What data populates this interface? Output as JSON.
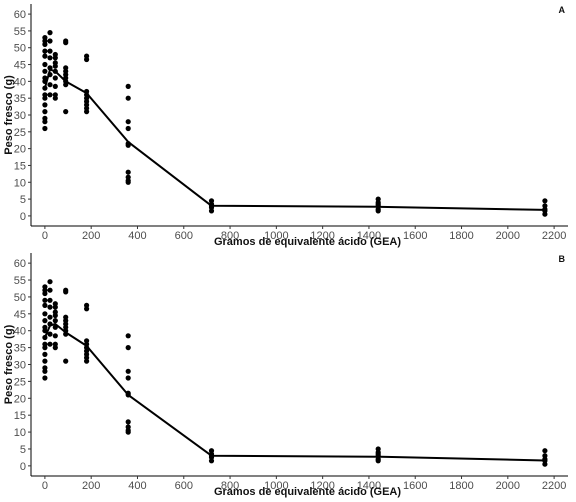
{
  "chart_data": [
    {
      "type": "scatter",
      "panel_label": "A",
      "xlabel": "Gramos de equivalente ácido (GEA)",
      "ylabel": "Peso fresco (g)",
      "xlim": [
        -60,
        2260
      ],
      "ylim": [
        -3,
        63
      ],
      "xticks": [
        0,
        200,
        400,
        600,
        800,
        1000,
        1200,
        1400,
        1600,
        1800,
        2000,
        2200
      ],
      "yticks": [
        0,
        5,
        10,
        15,
        20,
        25,
        30,
        35,
        40,
        45,
        50,
        55,
        60
      ],
      "grid": false,
      "points": [
        [
          0,
          53
        ],
        [
          0,
          52
        ],
        [
          0,
          51
        ],
        [
          0,
          49
        ],
        [
          0,
          47.5
        ],
        [
          0,
          45
        ],
        [
          0,
          43
        ],
        [
          0,
          41
        ],
        [
          0,
          40
        ],
        [
          0,
          38
        ],
        [
          0,
          36
        ],
        [
          0,
          35
        ],
        [
          0,
          33
        ],
        [
          0,
          31
        ],
        [
          0,
          29
        ],
        [
          0,
          28
        ],
        [
          0,
          26
        ],
        [
          22,
          54.5
        ],
        [
          22,
          52
        ],
        [
          22,
          49
        ],
        [
          22,
          47
        ],
        [
          22,
          44
        ],
        [
          22,
          42
        ],
        [
          22,
          39
        ],
        [
          22,
          36
        ],
        [
          45,
          48
        ],
        [
          45,
          47
        ],
        [
          45,
          45.5
        ],
        [
          45,
          44.5
        ],
        [
          45,
          43
        ],
        [
          45,
          41
        ],
        [
          45,
          38.5
        ],
        [
          45,
          36
        ],
        [
          45,
          35
        ],
        [
          90,
          52
        ],
        [
          90,
          51.5
        ],
        [
          90,
          44
        ],
        [
          90,
          43
        ],
        [
          90,
          42
        ],
        [
          90,
          41
        ],
        [
          90,
          40
        ],
        [
          90,
          39
        ],
        [
          90,
          31
        ],
        [
          180,
          47.5
        ],
        [
          180,
          46.5
        ],
        [
          180,
          37
        ],
        [
          180,
          36
        ],
        [
          180,
          35
        ],
        [
          180,
          34
        ],
        [
          180,
          33
        ],
        [
          180,
          32
        ],
        [
          180,
          31
        ],
        [
          360,
          38.5
        ],
        [
          360,
          35
        ],
        [
          360,
          28
        ],
        [
          360,
          26
        ],
        [
          360,
          21.5
        ],
        [
          360,
          21
        ],
        [
          360,
          13
        ],
        [
          360,
          11.5
        ],
        [
          360,
          10.5
        ],
        [
          360,
          10
        ],
        [
          720,
          4.5
        ],
        [
          720,
          3.5
        ],
        [
          720,
          3
        ],
        [
          720,
          2.5
        ],
        [
          720,
          1.5
        ],
        [
          1440,
          5
        ],
        [
          1440,
          4
        ],
        [
          1440,
          3.5
        ],
        [
          1440,
          3
        ],
        [
          1440,
          2
        ],
        [
          1440,
          1.5
        ],
        [
          2160,
          4.5
        ],
        [
          2160,
          3
        ],
        [
          2160,
          2
        ],
        [
          2160,
          1.5
        ],
        [
          2160,
          0.5
        ]
      ],
      "fit_line": {
        "x": [
          0,
          22,
          45,
          90,
          180,
          360,
          720,
          1440,
          2160
        ],
        "y": [
          38,
          43.5,
          43,
          40,
          36.5,
          22,
          3,
          2.7,
          1.8
        ]
      }
    },
    {
      "type": "scatter",
      "panel_label": "B",
      "xlabel": "Gramos de equivalente ácido (GEA)",
      "ylabel": "Peso fresco (g)",
      "xlim": [
        -60,
        2260
      ],
      "ylim": [
        -3,
        63
      ],
      "xticks": [
        0,
        200,
        400,
        600,
        800,
        1000,
        1200,
        1400,
        1600,
        1800,
        2000,
        2200
      ],
      "yticks": [
        0,
        5,
        10,
        15,
        20,
        25,
        30,
        35,
        40,
        45,
        50,
        55,
        60
      ],
      "grid": false,
      "points": [
        [
          0,
          53
        ],
        [
          0,
          52
        ],
        [
          0,
          51
        ],
        [
          0,
          49
        ],
        [
          0,
          47.5
        ],
        [
          0,
          45
        ],
        [
          0,
          43
        ],
        [
          0,
          41
        ],
        [
          0,
          40
        ],
        [
          0,
          38
        ],
        [
          0,
          36
        ],
        [
          0,
          35
        ],
        [
          0,
          33
        ],
        [
          0,
          31
        ],
        [
          0,
          29
        ],
        [
          0,
          28
        ],
        [
          0,
          26
        ],
        [
          22,
          54.5
        ],
        [
          22,
          52
        ],
        [
          22,
          49
        ],
        [
          22,
          47
        ],
        [
          22,
          44
        ],
        [
          22,
          42
        ],
        [
          22,
          39
        ],
        [
          22,
          36
        ],
        [
          45,
          48
        ],
        [
          45,
          47
        ],
        [
          45,
          45.5
        ],
        [
          45,
          44.5
        ],
        [
          45,
          43
        ],
        [
          45,
          41
        ],
        [
          45,
          38.5
        ],
        [
          45,
          36
        ],
        [
          45,
          35
        ],
        [
          90,
          52
        ],
        [
          90,
          51.5
        ],
        [
          90,
          44
        ],
        [
          90,
          43
        ],
        [
          90,
          42
        ],
        [
          90,
          41
        ],
        [
          90,
          40
        ],
        [
          90,
          39
        ],
        [
          90,
          31
        ],
        [
          180,
          47.5
        ],
        [
          180,
          46.5
        ],
        [
          180,
          37
        ],
        [
          180,
          36
        ],
        [
          180,
          35
        ],
        [
          180,
          34
        ],
        [
          180,
          33
        ],
        [
          180,
          32
        ],
        [
          180,
          31
        ],
        [
          360,
          38.5
        ],
        [
          360,
          35
        ],
        [
          360,
          28
        ],
        [
          360,
          26
        ],
        [
          360,
          21.5
        ],
        [
          360,
          21
        ],
        [
          360,
          13
        ],
        [
          360,
          11.5
        ],
        [
          360,
          10.5
        ],
        [
          360,
          10
        ],
        [
          720,
          4.5
        ],
        [
          720,
          3.5
        ],
        [
          720,
          3
        ],
        [
          720,
          2.5
        ],
        [
          720,
          1.5
        ],
        [
          1440,
          5
        ],
        [
          1440,
          4
        ],
        [
          1440,
          3.5
        ],
        [
          1440,
          3
        ],
        [
          1440,
          2
        ],
        [
          1440,
          1.5
        ],
        [
          2160,
          4.5
        ],
        [
          2160,
          3
        ],
        [
          2160,
          2
        ],
        [
          2160,
          1.5
        ],
        [
          2160,
          0.5
        ]
      ],
      "fit_line": {
        "x": [
          0,
          22,
          45,
          90,
          180,
          360,
          720,
          1440,
          2160
        ],
        "y": [
          38,
          41.5,
          42,
          39.5,
          35.5,
          21,
          3,
          2.7,
          1.6
        ]
      }
    }
  ]
}
